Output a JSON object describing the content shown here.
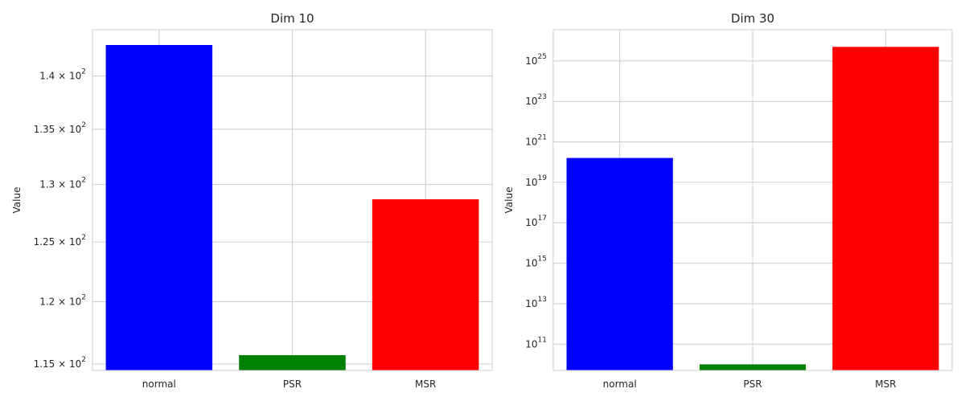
{
  "chart_data": [
    {
      "type": "bar",
      "title": "Dim 10",
      "xlabel": "",
      "ylabel": "Value",
      "yscale": "log",
      "categories": [
        "normal",
        "PSR",
        "MSR"
      ],
      "values": [
        143.0,
        115.7,
        128.7
      ],
      "colors": [
        "#0000ff",
        "#008000",
        "#ff0000"
      ],
      "ylim": [
        114.5,
        144.5
      ],
      "ytick_labels": [
        {
          "value": 115,
          "mantissa": "1.15",
          "base": "10",
          "exp": "2"
        },
        {
          "value": 120,
          "mantissa": "1.2",
          "base": "10",
          "exp": "2"
        },
        {
          "value": 125,
          "mantissa": "1.25",
          "base": "10",
          "exp": "2"
        },
        {
          "value": 130,
          "mantissa": "1.3",
          "base": "10",
          "exp": "2"
        },
        {
          "value": 135,
          "mantissa": "1.35",
          "base": "10",
          "exp": "2"
        },
        {
          "value": 140,
          "mantissa": "1.4",
          "base": "10",
          "exp": "2"
        }
      ],
      "grid": true
    },
    {
      "type": "bar",
      "title": "Dim 30",
      "xlabel": "",
      "ylabel": "Value",
      "yscale": "log",
      "categories": [
        "normal",
        "PSR",
        "MSR"
      ],
      "values": [
        1.6e+20,
        10000000000.0,
        5e+25
      ],
      "colors": [
        "#0000ff",
        "#008000",
        "#ff0000"
      ],
      "ylim": [
        5000000000.0,
        3.5e+26
      ],
      "ytick_labels": [
        {
          "value": 100000000000.0,
          "mantissa": "",
          "base": "10",
          "exp": "11"
        },
        {
          "value": 10000000000000.0,
          "mantissa": "",
          "base": "10",
          "exp": "13"
        },
        {
          "value": 1000000000000000.0,
          "mantissa": "",
          "base": "10",
          "exp": "15"
        },
        {
          "value": 1e+17,
          "mantissa": "",
          "base": "10",
          "exp": "17"
        },
        {
          "value": 1e+19,
          "mantissa": "",
          "base": "10",
          "exp": "19"
        },
        {
          "value": 1e+21,
          "mantissa": "",
          "base": "10",
          "exp": "21"
        },
        {
          "value": 1e+23,
          "mantissa": "",
          "base": "10",
          "exp": "23"
        },
        {
          "value": 1e+25,
          "mantissa": "",
          "base": "10",
          "exp": "25"
        }
      ],
      "grid": true
    }
  ]
}
